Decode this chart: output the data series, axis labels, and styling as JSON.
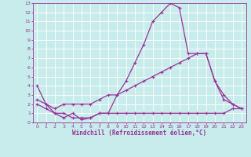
{
  "background_color": "#c8ecec",
  "grid_color": "#b0d8d8",
  "line_color": "#993399",
  "xlabel": "Windchill (Refroidissement éolien,°C)",
  "xlabel_color": "#993399",
  "tick_color": "#993399",
  "xlim": [
    -0.5,
    23.5
  ],
  "ylim": [
    0,
    13
  ],
  "xticks": [
    0,
    1,
    2,
    3,
    4,
    5,
    6,
    7,
    8,
    9,
    10,
    11,
    12,
    13,
    14,
    15,
    16,
    17,
    18,
    19,
    20,
    21,
    22,
    23
  ],
  "yticks": [
    0,
    1,
    2,
    3,
    4,
    5,
    6,
    7,
    8,
    9,
    10,
    11,
    12,
    13
  ],
  "line1_x": [
    0,
    1,
    2,
    3,
    4,
    5,
    6,
    7,
    8,
    9,
    10,
    11,
    12,
    13,
    14,
    15,
    16,
    17,
    18,
    19,
    20,
    21,
    22,
    23
  ],
  "line1_y": [
    4,
    2,
    1,
    0.5,
    1,
    0.3,
    0.5,
    1,
    1,
    3,
    4.5,
    6.5,
    8.5,
    11,
    12,
    13,
    12.5,
    7.5,
    7.5,
    7.5,
    4.5,
    2.5,
    2,
    1.5
  ],
  "line2_x": [
    0,
    1,
    2,
    3,
    4,
    5,
    6,
    7,
    8,
    9,
    10,
    11,
    12,
    13,
    14,
    15,
    16,
    17,
    18,
    19,
    20,
    21,
    22,
    23
  ],
  "line2_y": [
    2.5,
    2,
    1.5,
    2,
    2,
    2,
    2,
    2.5,
    3,
    3,
    3.5,
    4,
    4.5,
    5,
    5.5,
    6,
    6.5,
    7,
    7.5,
    7.5,
    4.5,
    3,
    2,
    1.5
  ],
  "line3_x": [
    0,
    1,
    2,
    3,
    4,
    5,
    6,
    7,
    8,
    9,
    10,
    11,
    12,
    13,
    14,
    15,
    16,
    17,
    18,
    19,
    20,
    21,
    22,
    23
  ],
  "line3_y": [
    2,
    1.5,
    1,
    1,
    0.5,
    0.5,
    0.5,
    1,
    1,
    1,
    1,
    1,
    1,
    1,
    1,
    1,
    1,
    1,
    1,
    1,
    1,
    1,
    1.5,
    1.5
  ]
}
